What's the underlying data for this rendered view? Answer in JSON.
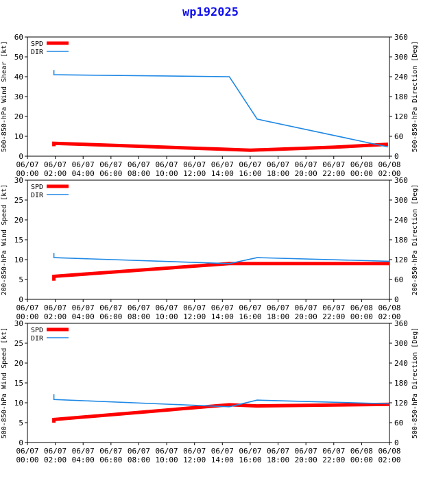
{
  "title": "wp192025",
  "colors": {
    "spd": "#ff0000",
    "dir": "#1e88e5",
    "title": "#1010ee",
    "frame": "#000000"
  },
  "legend": {
    "spd": "SPD",
    "dir": "DIR"
  },
  "x_ticks": [
    [
      "06/07",
      "00:00"
    ],
    [
      "06/07",
      "02:00"
    ],
    [
      "06/07",
      "04:00"
    ],
    [
      "06/07",
      "06:00"
    ],
    [
      "06/07",
      "08:00"
    ],
    [
      "06/07",
      "10:00"
    ],
    [
      "06/07",
      "12:00"
    ],
    [
      "06/07",
      "14:00"
    ],
    [
      "06/07",
      "16:00"
    ],
    [
      "06/07",
      "18:00"
    ],
    [
      "06/07",
      "20:00"
    ],
    [
      "06/07",
      "22:00"
    ],
    [
      "06/08",
      "00:00"
    ],
    [
      "06/08",
      "02:00"
    ]
  ],
  "chart_data": [
    {
      "type": "line",
      "ylabel_left": "500-850-hPa Wind Shear [kt]",
      "ylabel_right": "500-850-hPa Direction [Deg]",
      "xlim": [
        0,
        26
      ],
      "ylim_left": [
        0,
        60
      ],
      "ylim_right": [
        0,
        360
      ],
      "yticks_left": [
        0,
        10,
        20,
        30,
        40,
        50,
        60
      ],
      "yticks_right": [
        0,
        60,
        120,
        180,
        240,
        300,
        360
      ],
      "series": [
        {
          "name": "SPD",
          "axis": "left",
          "x": [
            1.9,
            1.9,
            8,
            14,
            16,
            22,
            25.9
          ],
          "y": [
            5,
            6.5,
            5,
            3.5,
            3,
            4.5,
            6
          ]
        },
        {
          "name": "DIR",
          "axis": "right",
          "x": [
            1.9,
            1.9,
            14.5,
            16.5,
            25.9
          ],
          "y": [
            260,
            246,
            240,
            112,
            28
          ]
        }
      ]
    },
    {
      "type": "line",
      "ylabel_left": "200-850-hPa Wind Speed [kt]",
      "ylabel_right": "200-850-hPa Direction [Deg]",
      "xlim": [
        0,
        26
      ],
      "ylim_left": [
        0,
        30
      ],
      "ylim_right": [
        0,
        360
      ],
      "yticks_left": [
        0,
        5,
        10,
        15,
        20,
        25,
        30
      ],
      "yticks_right": [
        0,
        60,
        120,
        180,
        240,
        300,
        360
      ],
      "series": [
        {
          "name": "SPD",
          "axis": "left",
          "x": [
            1.9,
            1.9,
            14.5,
            26
          ],
          "y": [
            4.7,
            5.8,
            9,
            9
          ]
        },
        {
          "name": "DIR",
          "axis": "right",
          "x": [
            1.9,
            1.9,
            14.5,
            16.5,
            26
          ],
          "y": [
            140,
            126,
            108,
            126,
            115
          ]
        }
      ]
    },
    {
      "type": "line",
      "ylabel_left": "500-850-hPa Wind Speed [kt]",
      "ylabel_right": "500-850-hPa Direction [Deg]",
      "xlim": [
        0,
        26
      ],
      "ylim_left": [
        0,
        30
      ],
      "ylim_right": [
        0,
        360
      ],
      "yticks_left": [
        0,
        5,
        10,
        15,
        20,
        25,
        30
      ],
      "yticks_right": [
        0,
        60,
        120,
        180,
        240,
        300,
        360
      ],
      "series": [
        {
          "name": "SPD",
          "axis": "left",
          "x": [
            1.9,
            1.9,
            14.5,
            16.5,
            26
          ],
          "y": [
            5,
            5.8,
            9.5,
            9.2,
            9.6
          ]
        },
        {
          "name": "DIR",
          "axis": "right",
          "x": [
            1.9,
            1.9,
            14.5,
            16.5,
            26
          ],
          "y": [
            146,
            130,
            108,
            128,
            117
          ]
        }
      ]
    }
  ]
}
